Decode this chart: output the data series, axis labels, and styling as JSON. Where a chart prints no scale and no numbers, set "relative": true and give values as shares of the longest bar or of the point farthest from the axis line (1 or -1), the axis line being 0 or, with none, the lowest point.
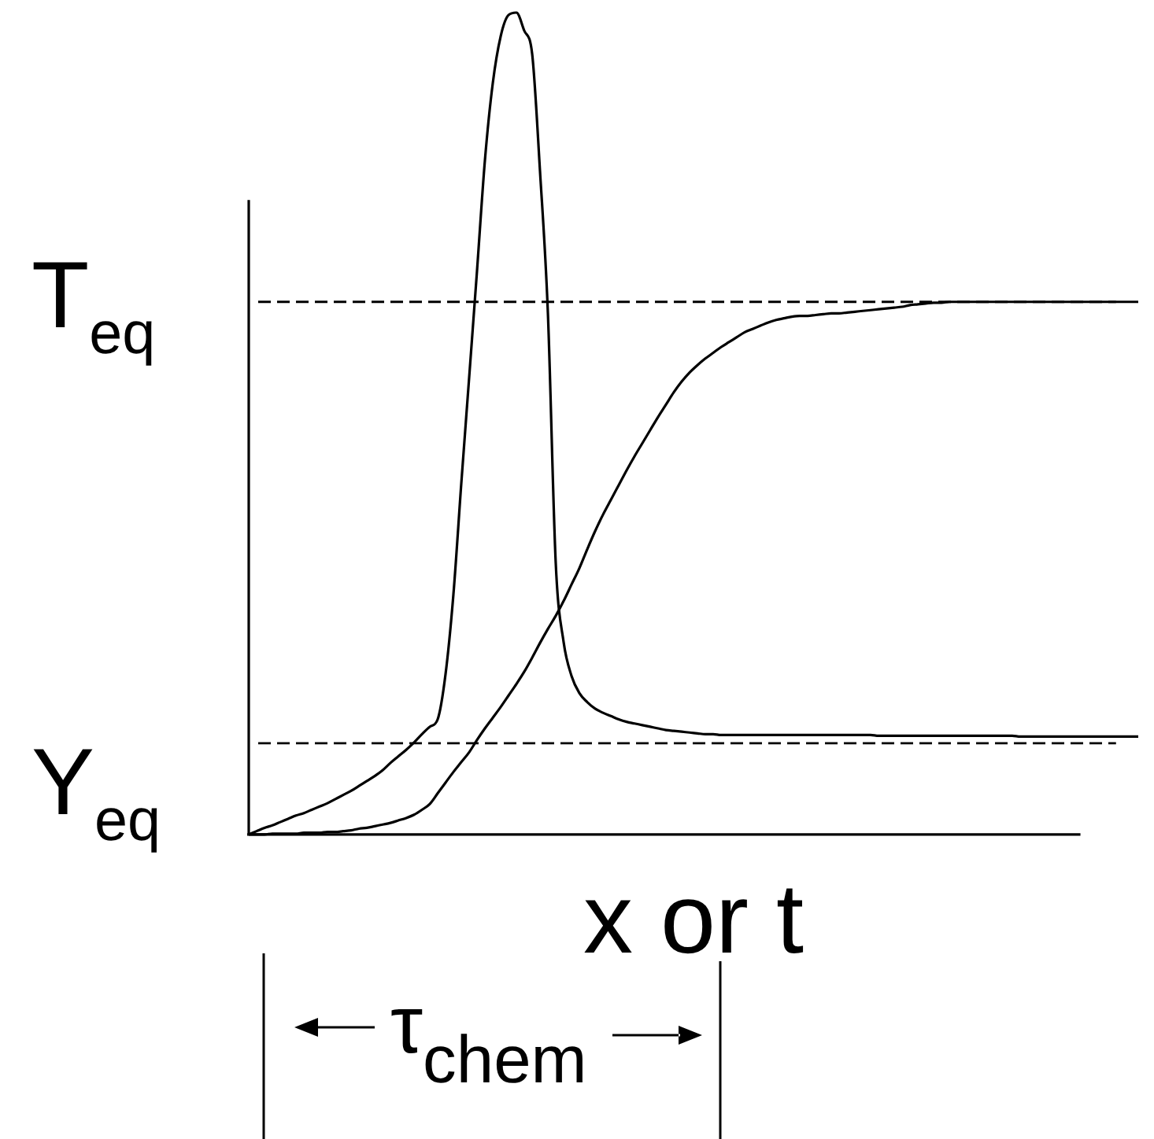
{
  "chart_data": {
    "type": "line",
    "relative": true,
    "tick_labels": false,
    "xlabel": "x or t",
    "categories": [
      null,
      null,
      null,
      null,
      null,
      null,
      null,
      null,
      null,
      null,
      null,
      null,
      null,
      null,
      null,
      null,
      null,
      null,
      null,
      null,
      null,
      null,
      null,
      null,
      null,
      null,
      null,
      null,
      null,
      null,
      null,
      null,
      null,
      null,
      null,
      null,
      null,
      null,
      null,
      null,
      null,
      null,
      null,
      null,
      null,
      null,
      null,
      null,
      null,
      null,
      null,
      null,
      null,
      null,
      null,
      null,
      null,
      null,
      null,
      null,
      null,
      null,
      null,
      null,
      null,
      null,
      null,
      null,
      null,
      null,
      null,
      null,
      null,
      null,
      null,
      null,
      null,
      null,
      null,
      null,
      null,
      null,
      null,
      null,
      null,
      null,
      null,
      null,
      null,
      null,
      null,
      null,
      null,
      null,
      null,
      null,
      null,
      null,
      null,
      null,
      null,
      null,
      null,
      null,
      null,
      null,
      null,
      null,
      null,
      null,
      null,
      null,
      null,
      null
    ],
    "series": [
      {
        "color": "#000000",
        "values": [
          0,
          0.004,
          0.008,
          0.011,
          0.015,
          0.019,
          0.023,
          0.026,
          0.03,
          0.034,
          0.038,
          0.043,
          0.048,
          0.053,
          0.059,
          0.065,
          0.071,
          0.078,
          0.087,
          0.095,
          0.103,
          0.112,
          0.122,
          0.131,
          0.14,
          0.195,
          0.292,
          0.427,
          0.556,
          0.686,
          0.82,
          0.914,
          0.971,
          0.997,
          1,
          0.978,
          0.95,
          0.807,
          0.635,
          0.33,
          0.234,
          0.193,
          0.172,
          0.161,
          0.153,
          0.148,
          0.144,
          0.14,
          0.137,
          0.135,
          0.133,
          0.131,
          0.129,
          0.127,
          0.126,
          0.125,
          0.124,
          0.123,
          0.122,
          0.122,
          0.121,
          0.121,
          0.121,
          0.121,
          0.121,
          0.121,
          0.121,
          0.121,
          0.121,
          0.121,
          0.121,
          0.121,
          0.121,
          0.121,
          0.121,
          0.121,
          0.121,
          0.121,
          0.121,
          0.121,
          0.12,
          0.12,
          0.12,
          0.12,
          0.12,
          0.12,
          0.12,
          0.12,
          0.12,
          0.12,
          0.12,
          0.12,
          0.12,
          0.12,
          0.12,
          0.12,
          0.12,
          0.12,
          0.119,
          0.119,
          0.119,
          0.119,
          0.119,
          0.119,
          0.119,
          0.119,
          0.119,
          0.119,
          0.119,
          0.119,
          0.119,
          0.119,
          0.119,
          0.119
        ]
      },
      {
        "color": "#000000",
        "values": [
          0,
          0,
          0,
          0.001,
          0.001,
          0.001,
          0.001,
          0.002,
          0.002,
          0.002,
          0.003,
          0.003,
          0.004,
          0.005,
          0.007,
          0.008,
          0.01,
          0.012,
          0.014,
          0.017,
          0.02,
          0.024,
          0.03,
          0.037,
          0.05,
          0.063,
          0.076,
          0.088,
          0.1,
          0.115,
          0.129,
          0.142,
          0.155,
          0.169,
          0.183,
          0.198,
          0.215,
          0.233,
          0.25,
          0.266,
          0.284,
          0.304,
          0.324,
          0.347,
          0.369,
          0.389,
          0.407,
          0.425,
          0.443,
          0.46,
          0.476,
          0.492,
          0.508,
          0.523,
          0.538,
          0.551,
          0.562,
          0.571,
          0.579,
          0.586,
          0.593,
          0.599,
          0.605,
          0.611,
          0.615,
          0.619,
          0.623,
          0.626,
          0.628,
          0.63,
          0.631,
          0.631,
          0.632,
          0.633,
          0.634,
          0.634,
          0.635,
          0.636,
          0.637,
          0.638,
          0.639,
          0.64,
          0.641,
          0.642,
          0.644,
          0.645,
          0.646,
          0.647,
          0.647,
          0.648,
          0.648,
          0.648,
          0.648,
          0.648,
          0.648,
          0.648,
          0.648,
          0.648,
          0.648,
          0.648,
          0.648,
          0.648,
          0.648,
          0.648,
          0.648,
          0.648,
          0.648,
          0.648,
          0.648,
          0.648,
          0.648,
          0.648,
          0.648,
          0.648
        ]
      }
    ],
    "ref_lines": [
      {
        "axis": "y",
        "value": 0.648,
        "label": "T$_{eq}$",
        "line_style": "dashed",
        "color": "#000000"
      },
      {
        "axis": "y",
        "value": 0.111,
        "label": "Y$_{eq}$",
        "line_style": "dashed",
        "color": "#000000"
      }
    ],
    "annotations": [
      "τ$_{chem}$"
    ]
  }
}
